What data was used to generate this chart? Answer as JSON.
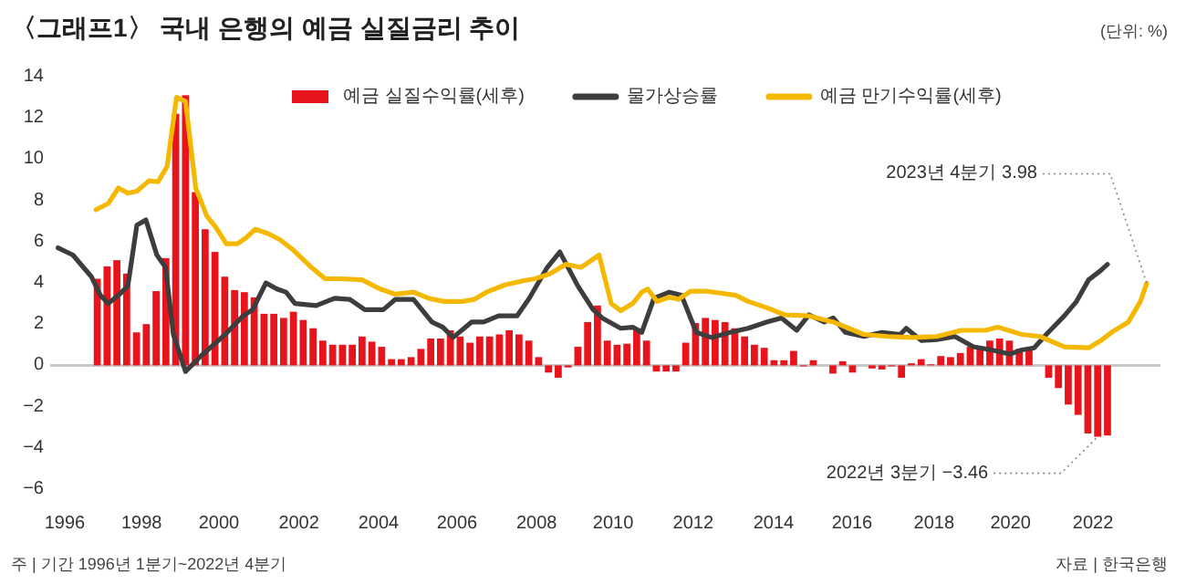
{
  "chart_data": {
    "type": "bar",
    "title": "〈그래프1〉 국내 은행의 예금 실질금리 추이",
    "xlim": [
      1995.8,
      2024.1
    ],
    "ylim": [
      -6,
      14
    ],
    "yticks": [
      -6,
      -4,
      -2,
      0,
      2,
      4,
      6,
      8,
      10,
      12,
      14
    ],
    "xticks": [
      {
        "value": 1996.17,
        "label": "1996"
      },
      {
        "value": 1998.13,
        "label": "1998"
      },
      {
        "value": 2000.1,
        "label": "2000"
      },
      {
        "value": 2002.14,
        "label": "2002"
      },
      {
        "value": 2004.17,
        "label": "2004"
      },
      {
        "value": 2006.17,
        "label": "2006"
      },
      {
        "value": 2008.2,
        "label": "2008"
      },
      {
        "value": 2010.15,
        "label": "2010"
      },
      {
        "value": 2012.19,
        "label": "2012"
      },
      {
        "value": 2014.24,
        "label": "2014"
      },
      {
        "value": 2016.24,
        "label": "2016"
      },
      {
        "value": 2018.33,
        "label": "2018"
      },
      {
        "value": 2020.28,
        "label": "2020"
      },
      {
        "value": 2022.38,
        "label": "2022"
      }
    ],
    "legend": "top",
    "ref_lines": [
      {
        "axis": "y",
        "value": 0,
        "color": "#c8c8c8"
      }
    ],
    "series": [
      {
        "name": "예금 실질수익률(세후)",
        "color": "#e8141c",
        "x": [
          1997,
          1997.25,
          1997.5,
          1997.75,
          1998,
          1998.25,
          1998.5,
          1998.75,
          1999,
          1999.25,
          1999.5,
          1999.75,
          2000,
          2000.25,
          2000.5,
          2000.75,
          2001,
          2001.25,
          2001.5,
          2001.75,
          2002,
          2002.25,
          2002.5,
          2002.75,
          2003,
          2003.25,
          2003.5,
          2003.75,
          2004,
          2004.25,
          2004.5,
          2004.75,
          2005,
          2005.25,
          2005.5,
          2005.75,
          2006,
          2006.25,
          2006.5,
          2006.75,
          2007,
          2007.25,
          2007.5,
          2007.75,
          2008,
          2008.25,
          2008.5,
          2008.75,
          2009,
          2009.25,
          2009.5,
          2009.75,
          2010,
          2010.25,
          2010.5,
          2010.75,
          2011,
          2011.25,
          2011.5,
          2011.75,
          2012,
          2012.25,
          2012.5,
          2012.75,
          2013,
          2013.25,
          2013.5,
          2013.75,
          2014,
          2014.25,
          2014.5,
          2014.75,
          2015,
          2015.25,
          2015.5,
          2015.75,
          2016,
          2016.25,
          2016.5,
          2016.75,
          2017,
          2017.25,
          2017.5,
          2017.75,
          2018,
          2018.25,
          2018.5,
          2018.75,
          2019,
          2019.25,
          2019.5,
          2019.75,
          2020,
          2020.25,
          2020.5,
          2020.75,
          2021,
          2021.25,
          2021.5,
          2021.75,
          2022,
          2022.25,
          2022.5,
          2022.75
        ],
        "values": [
          4.2,
          4.8,
          5.1,
          4.45,
          1.6,
          2.0,
          3.6,
          5.2,
          12.2,
          13.1,
          8.4,
          6.6,
          5.5,
          4.3,
          3.65,
          3.55,
          3.3,
          2.5,
          2.5,
          2.3,
          2.6,
          2.2,
          1.8,
          1.2,
          1.0,
          1.0,
          1.0,
          1.4,
          1.15,
          0.9,
          0.3,
          0.3,
          0.4,
          0.8,
          1.3,
          1.3,
          1.7,
          1.4,
          1.1,
          1.4,
          1.4,
          1.5,
          1.7,
          1.5,
          1.2,
          0.4,
          -0.35,
          -0.6,
          -0.1,
          0.9,
          2.1,
          2.9,
          1.2,
          1.0,
          1.05,
          1.8,
          1.2,
          -0.3,
          -0.3,
          -0.3,
          1.1,
          2.05,
          2.3,
          2.2,
          2.1,
          1.8,
          1.4,
          1.0,
          0.85,
          0.25,
          0.25,
          0.7,
          -0.05,
          0.25,
          0.0,
          -0.4,
          0.2,
          -0.35,
          0.0,
          -0.15,
          -0.2,
          -0.05,
          -0.6,
          0.1,
          0.3,
          0.05,
          0.45,
          0.4,
          0.6,
          0.9,
          0.85,
          1.2,
          1.3,
          1.2,
          0.8,
          0.75,
          0.0,
          -0.6,
          -1.1,
          -1.9,
          -2.4,
          -3.3,
          -3.46,
          -3.4
        ]
      },
      {
        "type": "line",
        "name": "물가상승률",
        "color": "#3d3d3d",
        "x": [
          1996.0,
          1996.38,
          1996.85,
          1997.08,
          1997.28,
          1997.54,
          1997.78,
          1998.01,
          1998.24,
          1998.52,
          1998.74,
          1998.94,
          1999.25,
          1999.64,
          2000.26,
          2000.72,
          2000.96,
          2001.3,
          2001.58,
          2001.81,
          2002.04,
          2002.58,
          2003.05,
          2003.44,
          2003.82,
          2004.29,
          2004.6,
          2005.06,
          2005.53,
          2005.81,
          2006.07,
          2006.54,
          2006.85,
          2007.23,
          2007.7,
          2008.01,
          2008.47,
          2008.79,
          2009.25,
          2009.64,
          2009.87,
          2010.34,
          2010.65,
          2010.88,
          2011.19,
          2011.58,
          2011.89,
          2012.27,
          2012.66,
          2013.13,
          2013.59,
          2014.06,
          2014.44,
          2014.83,
          2015.14,
          2015.53,
          2015.76,
          2016.07,
          2016.54,
          2017.0,
          2017.47,
          2017.62,
          2018.01,
          2018.4,
          2018.86,
          2019.33,
          2019.79,
          2020.26,
          2020.57,
          2020.88,
          2021.19,
          2021.65,
          2021.96,
          2022.27,
          2022.58,
          2022.75
        ],
        "values": [
          5.7,
          5.35,
          4.3,
          3.4,
          3.0,
          3.4,
          3.85,
          6.8,
          7.05,
          5.35,
          4.75,
          1.5,
          -0.3,
          0.45,
          1.5,
          2.4,
          2.7,
          4.0,
          3.7,
          3.55,
          3.0,
          2.9,
          3.25,
          3.2,
          2.7,
          2.7,
          3.2,
          3.2,
          2.1,
          1.85,
          1.35,
          2.1,
          2.1,
          2.4,
          2.4,
          3.25,
          4.75,
          5.5,
          3.85,
          2.7,
          2.3,
          1.8,
          1.85,
          1.6,
          3.25,
          3.55,
          3.4,
          1.6,
          1.35,
          1.6,
          1.8,
          2.1,
          2.3,
          1.7,
          2.45,
          2.1,
          2.3,
          1.6,
          1.4,
          1.6,
          1.5,
          1.8,
          1.2,
          1.25,
          1.4,
          0.9,
          0.75,
          0.55,
          0.75,
          0.85,
          1.5,
          2.4,
          3.1,
          4.15,
          4.6,
          4.9
        ]
      },
      {
        "type": "line",
        "name": "예금 만기수익률(세후)",
        "color": "#f5b800",
        "x": [
          1996.97,
          1997.28,
          1997.54,
          1997.78,
          1998.01,
          1998.32,
          1998.55,
          1998.78,
          1999.02,
          1999.25,
          1999.51,
          1999.79,
          2000.02,
          2000.29,
          2000.57,
          2000.8,
          2001.03,
          2001.34,
          2001.65,
          2001.96,
          2002.43,
          2002.81,
          2003.2,
          2003.75,
          2004.21,
          2004.6,
          2005.06,
          2005.45,
          2005.84,
          2006.3,
          2006.61,
          2006.92,
          2007.39,
          2007.85,
          2008.16,
          2008.55,
          2008.94,
          2009.33,
          2009.79,
          2010.1,
          2010.34,
          2010.65,
          2010.88,
          2011.03,
          2011.27,
          2011.58,
          2011.81,
          2012.12,
          2012.51,
          2013.28,
          2013.59,
          2014.06,
          2014.52,
          2015.14,
          2015.76,
          2016.54,
          2017.16,
          2017.78,
          2018.4,
          2019.02,
          2019.64,
          2019.95,
          2020.57,
          2021.03,
          2021.65,
          2022.27,
          2022.58,
          2022.89,
          2023.28,
          2023.59,
          2023.75
        ],
        "values": [
          7.55,
          7.85,
          8.6,
          8.35,
          8.45,
          8.95,
          8.9,
          9.65,
          13.0,
          12.8,
          8.6,
          7.25,
          6.7,
          5.9,
          5.9,
          6.2,
          6.6,
          6.4,
          6.1,
          5.65,
          4.8,
          4.2,
          4.2,
          4.15,
          3.7,
          3.45,
          3.55,
          3.25,
          3.1,
          3.1,
          3.2,
          3.55,
          3.9,
          4.1,
          4.2,
          4.45,
          4.9,
          4.75,
          5.35,
          3.0,
          2.65,
          3.0,
          3.55,
          3.7,
          3.1,
          3.3,
          3.2,
          3.6,
          3.6,
          3.4,
          3.1,
          2.8,
          2.45,
          2.4,
          2.1,
          1.5,
          1.4,
          1.35,
          1.4,
          1.7,
          1.7,
          1.85,
          1.5,
          1.4,
          0.9,
          0.85,
          1.2,
          1.65,
          2.1,
          3.1,
          3.98
        ]
      }
    ],
    "annotations": [
      "(단위: %)",
      {
        "text": "2023년 4분기 3.98",
        "x": 2023.75,
        "y": 3.98
      },
      {
        "text": "2022년 3분기 −3.46",
        "x": 2022.5,
        "y": -3.46
      },
      "주 | 기간 1996년 1분기~2022년 4분기",
      "자료 | 한국은행"
    ]
  }
}
